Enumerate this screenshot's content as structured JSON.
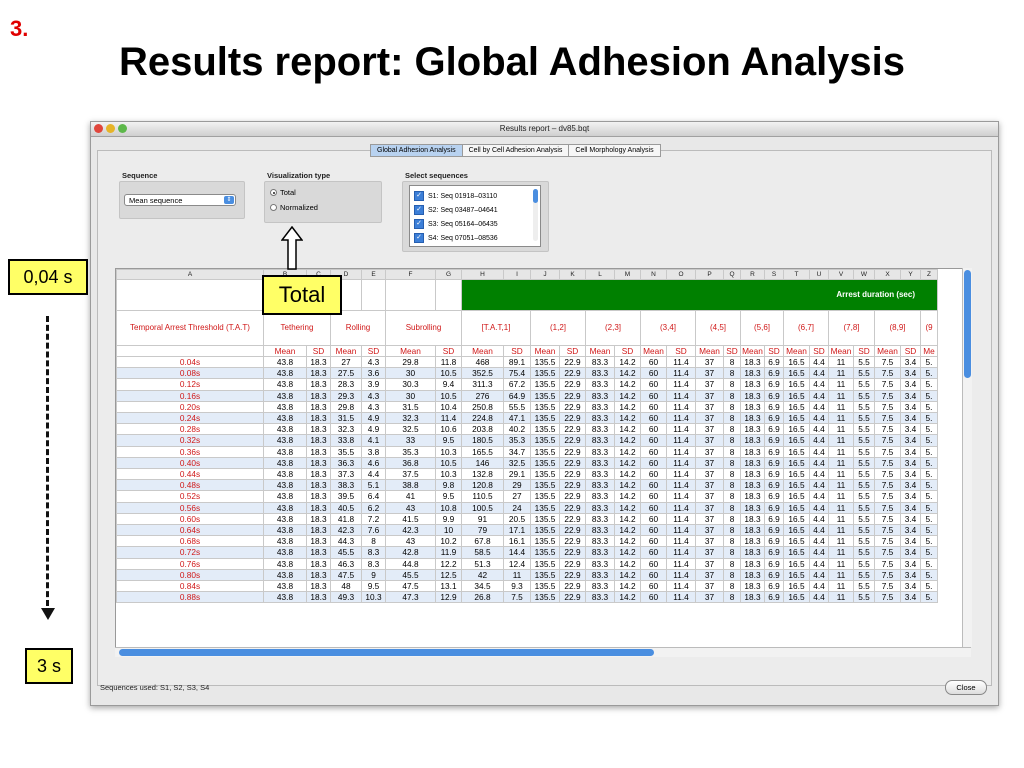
{
  "slide": {
    "number": "3.",
    "title": "Results report: Global Adhesion Analysis"
  },
  "callouts": {
    "top": "0,04 s",
    "bottom": "3 s",
    "total": "Total"
  },
  "window": {
    "title": "Results report – dv85.bqt",
    "tabs": [
      "Global Adhesion Analysis",
      "Cell by Cell Adhesion Analysis",
      "Cell Morphology Analysis"
    ],
    "sequence": {
      "label": "Sequence",
      "value": "Mean sequence"
    },
    "visualization": {
      "label": "Visualization type",
      "options": [
        "Total",
        "Normalized"
      ],
      "selected": "Total"
    },
    "select_sequences": {
      "label": "Select sequences",
      "items": [
        "S1: Seq 01918–03110",
        "S2: Seq 03487–04641",
        "S3: Seq 05164–06435",
        "S4: Seq 07051–08536"
      ]
    },
    "status": "Sequences used: S1, S2, S3, S4",
    "close": "Close"
  },
  "grid": {
    "col_letters": [
      "A",
      "B",
      "C",
      "D",
      "E",
      "F",
      "G",
      "H",
      "I",
      "J",
      "K",
      "L",
      "M",
      "N",
      "O",
      "P",
      "Q",
      "R",
      "S",
      "T",
      "U",
      "V",
      "W",
      "X",
      "Y",
      "Z"
    ],
    "arrest_header": "Arrest duration (sec)",
    "threshold_header": "Temporal Arrest Threshold (T.A.T)",
    "groups": [
      "Tethering",
      "Rolling",
      "Subrolling",
      "[T.A.T,1]",
      "(1,2]",
      "(2,3]",
      "(3,4]",
      "(4,5]",
      "(5,6]",
      "(6,7]",
      "(7,8]",
      "(8,9]",
      "(9"
    ],
    "sub": [
      "Mean",
      "SD",
      "Mean",
      "SD",
      "Mean",
      "SD",
      "Mean",
      "SD",
      "Mean",
      "SD",
      "Mean",
      "SD",
      "Mean",
      "SD",
      "Mean",
      "SD",
      "Mean",
      "SD",
      "Mean",
      "SD",
      "Mean",
      "SD",
      "Mean",
      "SD",
      "Me"
    ],
    "rows": [
      [
        "0.04s",
        "43.8",
        "18.3",
        "27",
        "4.3",
        "29.8",
        "11.8",
        "468",
        "89.1",
        "135.5",
        "22.9",
        "83.3",
        "14.2",
        "60",
        "11.4",
        "37",
        "8",
        "18.3",
        "6.9",
        "16.5",
        "4.4",
        "11",
        "5.5",
        "7.5",
        "3.4",
        "5."
      ],
      [
        "0.08s",
        "43.8",
        "18.3",
        "27.5",
        "3.6",
        "30",
        "10.5",
        "352.5",
        "75.4",
        "135.5",
        "22.9",
        "83.3",
        "14.2",
        "60",
        "11.4",
        "37",
        "8",
        "18.3",
        "6.9",
        "16.5",
        "4.4",
        "11",
        "5.5",
        "7.5",
        "3.4",
        "5."
      ],
      [
        "0.12s",
        "43.8",
        "18.3",
        "28.3",
        "3.9",
        "30.3",
        "9.4",
        "311.3",
        "67.2",
        "135.5",
        "22.9",
        "83.3",
        "14.2",
        "60",
        "11.4",
        "37",
        "8",
        "18.3",
        "6.9",
        "16.5",
        "4.4",
        "11",
        "5.5",
        "7.5",
        "3.4",
        "5."
      ],
      [
        "0.16s",
        "43.8",
        "18.3",
        "29.3",
        "4.3",
        "30",
        "10.5",
        "276",
        "64.9",
        "135.5",
        "22.9",
        "83.3",
        "14.2",
        "60",
        "11.4",
        "37",
        "8",
        "18.3",
        "6.9",
        "16.5",
        "4.4",
        "11",
        "5.5",
        "7.5",
        "3.4",
        "5."
      ],
      [
        "0.20s",
        "43.8",
        "18.3",
        "29.8",
        "4.3",
        "31.5",
        "10.4",
        "250.8",
        "55.5",
        "135.5",
        "22.9",
        "83.3",
        "14.2",
        "60",
        "11.4",
        "37",
        "8",
        "18.3",
        "6.9",
        "16.5",
        "4.4",
        "11",
        "5.5",
        "7.5",
        "3.4",
        "5."
      ],
      [
        "0.24s",
        "43.8",
        "18.3",
        "31.5",
        "4.9",
        "32.3",
        "11.4",
        "224.8",
        "47.1",
        "135.5",
        "22.9",
        "83.3",
        "14.2",
        "60",
        "11.4",
        "37",
        "8",
        "18.3",
        "6.9",
        "16.5",
        "4.4",
        "11",
        "5.5",
        "7.5",
        "3.4",
        "5."
      ],
      [
        "0.28s",
        "43.8",
        "18.3",
        "32.3",
        "4.9",
        "32.5",
        "10.6",
        "203.8",
        "40.2",
        "135.5",
        "22.9",
        "83.3",
        "14.2",
        "60",
        "11.4",
        "37",
        "8",
        "18.3",
        "6.9",
        "16.5",
        "4.4",
        "11",
        "5.5",
        "7.5",
        "3.4",
        "5."
      ],
      [
        "0.32s",
        "43.8",
        "18.3",
        "33.8",
        "4.1",
        "33",
        "9.5",
        "180.5",
        "35.3",
        "135.5",
        "22.9",
        "83.3",
        "14.2",
        "60",
        "11.4",
        "37",
        "8",
        "18.3",
        "6.9",
        "16.5",
        "4.4",
        "11",
        "5.5",
        "7.5",
        "3.4",
        "5."
      ],
      [
        "0.36s",
        "43.8",
        "18.3",
        "35.5",
        "3.8",
        "35.3",
        "10.3",
        "165.5",
        "34.7",
        "135.5",
        "22.9",
        "83.3",
        "14.2",
        "60",
        "11.4",
        "37",
        "8",
        "18.3",
        "6.9",
        "16.5",
        "4.4",
        "11",
        "5.5",
        "7.5",
        "3.4",
        "5."
      ],
      [
        "0.40s",
        "43.8",
        "18.3",
        "36.3",
        "4.6",
        "36.8",
        "10.5",
        "146",
        "32.5",
        "135.5",
        "22.9",
        "83.3",
        "14.2",
        "60",
        "11.4",
        "37",
        "8",
        "18.3",
        "6.9",
        "16.5",
        "4.4",
        "11",
        "5.5",
        "7.5",
        "3.4",
        "5."
      ],
      [
        "0.44s",
        "43.8",
        "18.3",
        "37.3",
        "4.4",
        "37.5",
        "10.3",
        "132.8",
        "29.1",
        "135.5",
        "22.9",
        "83.3",
        "14.2",
        "60",
        "11.4",
        "37",
        "8",
        "18.3",
        "6.9",
        "16.5",
        "4.4",
        "11",
        "5.5",
        "7.5",
        "3.4",
        "5."
      ],
      [
        "0.48s",
        "43.8",
        "18.3",
        "38.3",
        "5.1",
        "38.8",
        "9.8",
        "120.8",
        "29",
        "135.5",
        "22.9",
        "83.3",
        "14.2",
        "60",
        "11.4",
        "37",
        "8",
        "18.3",
        "6.9",
        "16.5",
        "4.4",
        "11",
        "5.5",
        "7.5",
        "3.4",
        "5."
      ],
      [
        "0.52s",
        "43.8",
        "18.3",
        "39.5",
        "6.4",
        "41",
        "9.5",
        "110.5",
        "27",
        "135.5",
        "22.9",
        "83.3",
        "14.2",
        "60",
        "11.4",
        "37",
        "8",
        "18.3",
        "6.9",
        "16.5",
        "4.4",
        "11",
        "5.5",
        "7.5",
        "3.4",
        "5."
      ],
      [
        "0.56s",
        "43.8",
        "18.3",
        "40.5",
        "6.2",
        "43",
        "10.8",
        "100.5",
        "24",
        "135.5",
        "22.9",
        "83.3",
        "14.2",
        "60",
        "11.4",
        "37",
        "8",
        "18.3",
        "6.9",
        "16.5",
        "4.4",
        "11",
        "5.5",
        "7.5",
        "3.4",
        "5."
      ],
      [
        "0.60s",
        "43.8",
        "18.3",
        "41.8",
        "7.2",
        "41.5",
        "9.9",
        "91",
        "20.5",
        "135.5",
        "22.9",
        "83.3",
        "14.2",
        "60",
        "11.4",
        "37",
        "8",
        "18.3",
        "6.9",
        "16.5",
        "4.4",
        "11",
        "5.5",
        "7.5",
        "3.4",
        "5."
      ],
      [
        "0.64s",
        "43.8",
        "18.3",
        "42.3",
        "7.6",
        "42.3",
        "10",
        "79",
        "17.1",
        "135.5",
        "22.9",
        "83.3",
        "14.2",
        "60",
        "11.4",
        "37",
        "8",
        "18.3",
        "6.9",
        "16.5",
        "4.4",
        "11",
        "5.5",
        "7.5",
        "3.4",
        "5."
      ],
      [
        "0.68s",
        "43.8",
        "18.3",
        "44.3",
        "8",
        "43",
        "10.2",
        "67.8",
        "16.1",
        "135.5",
        "22.9",
        "83.3",
        "14.2",
        "60",
        "11.4",
        "37",
        "8",
        "18.3",
        "6.9",
        "16.5",
        "4.4",
        "11",
        "5.5",
        "7.5",
        "3.4",
        "5."
      ],
      [
        "0.72s",
        "43.8",
        "18.3",
        "45.5",
        "8.3",
        "42.8",
        "11.9",
        "58.5",
        "14.4",
        "135.5",
        "22.9",
        "83.3",
        "14.2",
        "60",
        "11.4",
        "37",
        "8",
        "18.3",
        "6.9",
        "16.5",
        "4.4",
        "11",
        "5.5",
        "7.5",
        "3.4",
        "5."
      ],
      [
        "0.76s",
        "43.8",
        "18.3",
        "46.3",
        "8.3",
        "44.8",
        "12.2",
        "51.3",
        "12.4",
        "135.5",
        "22.9",
        "83.3",
        "14.2",
        "60",
        "11.4",
        "37",
        "8",
        "18.3",
        "6.9",
        "16.5",
        "4.4",
        "11",
        "5.5",
        "7.5",
        "3.4",
        "5."
      ],
      [
        "0.80s",
        "43.8",
        "18.3",
        "47.5",
        "9",
        "45.5",
        "12.5",
        "42",
        "11",
        "135.5",
        "22.9",
        "83.3",
        "14.2",
        "60",
        "11.4",
        "37",
        "8",
        "18.3",
        "6.9",
        "16.5",
        "4.4",
        "11",
        "5.5",
        "7.5",
        "3.4",
        "5."
      ],
      [
        "0.84s",
        "43.8",
        "18.3",
        "48",
        "9.5",
        "47.5",
        "13.1",
        "34.5",
        "9.3",
        "135.5",
        "22.9",
        "83.3",
        "14.2",
        "60",
        "11.4",
        "37",
        "8",
        "18.3",
        "6.9",
        "16.5",
        "4.4",
        "11",
        "5.5",
        "7.5",
        "3.4",
        "5."
      ],
      [
        "0.88s",
        "43.8",
        "18.3",
        "49.3",
        "10.3",
        "47.3",
        "12.9",
        "26.8",
        "7.5",
        "135.5",
        "22.9",
        "83.3",
        "14.2",
        "60",
        "11.4",
        "37",
        "8",
        "18.3",
        "6.9",
        "16.5",
        "4.4",
        "11",
        "5.5",
        "7.5",
        "3.4",
        "5."
      ]
    ]
  },
  "colors": {
    "green": "#008000",
    "red": "#d01818",
    "callout": "#ffff66",
    "select_blue": "#4a8ee0"
  }
}
